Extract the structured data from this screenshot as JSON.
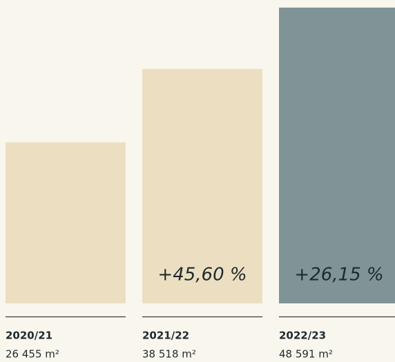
{
  "chart_data": {
    "type": "bar",
    "categories": [
      "2020/21",
      "2021/22",
      "2022/23"
    ],
    "values": [
      26455,
      38518,
      48591
    ],
    "value_labels": [
      "26 455 m²",
      "38 518 m²",
      "48 591 m²"
    ],
    "colors": [
      "#ecdfc1",
      "#ecdfc1",
      "#809496"
    ],
    "annotations": [
      null,
      "+45,60 %",
      "+26,15 %"
    ]
  }
}
